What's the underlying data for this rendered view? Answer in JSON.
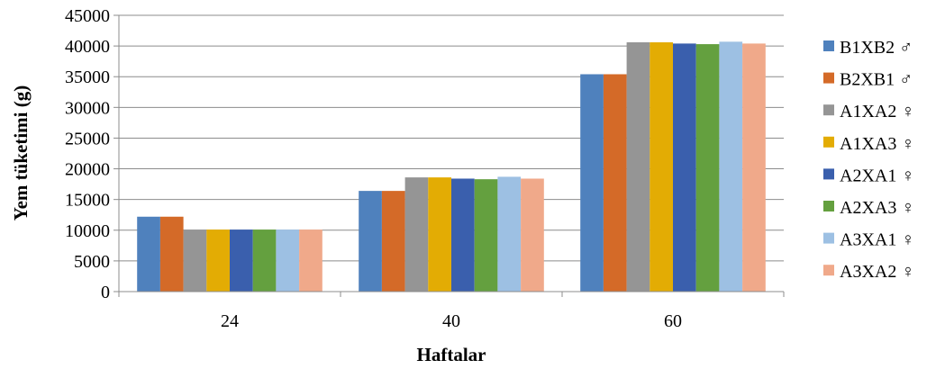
{
  "chart_data": {
    "type": "bar",
    "title": "",
    "xlabel": "Haftalar",
    "ylabel": "Yem tüketimi (g)",
    "categories": [
      "24",
      "40",
      "60"
    ],
    "ylim": [
      0,
      45000
    ],
    "yticks": [
      0,
      5000,
      10000,
      15000,
      20000,
      25000,
      30000,
      35000,
      40000,
      45000
    ],
    "grid": true,
    "legend_position": "right",
    "series": [
      {
        "name": "B1XB2 ♂",
        "color": "#4F81BD",
        "values": [
          12200,
          16400,
          35400
        ]
      },
      {
        "name": "B2XB1 ♂",
        "color": "#D46A28",
        "values": [
          12200,
          16400,
          35400
        ]
      },
      {
        "name": "A1XA2 ♀",
        "color": "#959595",
        "values": [
          10100,
          18600,
          40600
        ]
      },
      {
        "name": "A1XA3 ♀",
        "color": "#E3AC04",
        "values": [
          10100,
          18600,
          40600
        ]
      },
      {
        "name": "A2XA1 ♀",
        "color": "#3A5FAD",
        "values": [
          10100,
          18400,
          40400
        ]
      },
      {
        "name": "A2XA3 ♀",
        "color": "#64A03F",
        "values": [
          10100,
          18300,
          40300
        ]
      },
      {
        "name": "A3XA1 ♀",
        "color": "#9DC0E3",
        "values": [
          10100,
          18700,
          40700
        ]
      },
      {
        "name": "A3XA2 ♀",
        "color": "#F0A98A",
        "values": [
          10100,
          18400,
          40400
        ]
      }
    ]
  }
}
